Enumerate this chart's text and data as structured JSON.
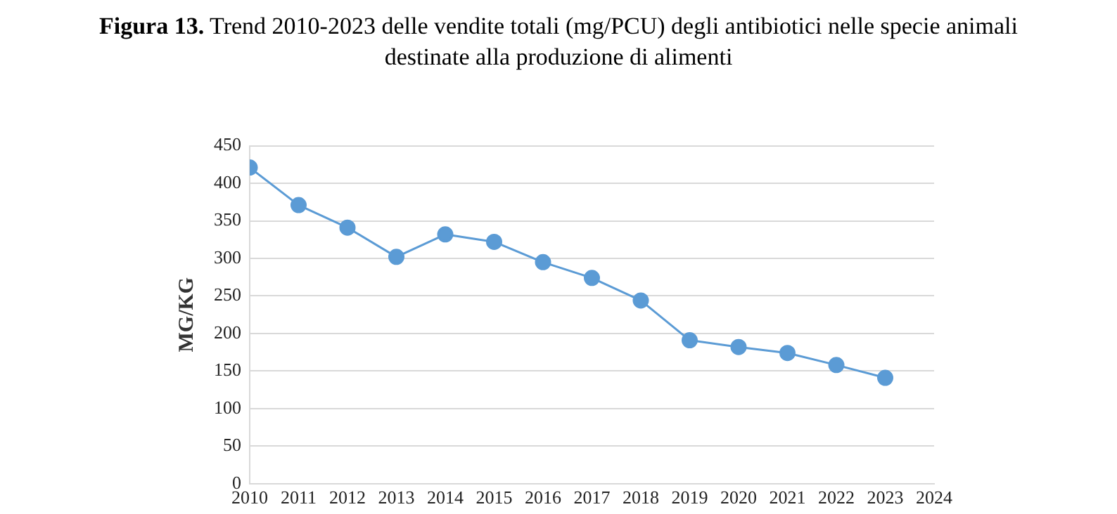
{
  "chart_data": {
    "type": "line",
    "title": "Figura 13. Trend 2010-2023 delle vendite totali (mg/PCU) degli antibiotici nelle specie animali destinate alla produzione di alimenti",
    "ylabel": "MG/KG",
    "x": [
      2010,
      2011,
      2012,
      2013,
      2014,
      2015,
      2016,
      2017,
      2018,
      2019,
      2020,
      2021,
      2022,
      2023
    ],
    "series": [
      {
        "color": "#5b9bd5",
        "values": [
          421,
          371,
          341,
          302,
          332,
          322,
          295,
          274,
          244,
          191,
          182,
          174,
          158,
          141
        ]
      }
    ],
    "xlim": [
      2010,
      2024
    ],
    "xticks": [
      2010,
      2011,
      2012,
      2013,
      2014,
      2015,
      2016,
      2017,
      2018,
      2019,
      2020,
      2021,
      2022,
      2023,
      2024
    ],
    "ylim": [
      0,
      450
    ],
    "yticks": [
      0,
      50,
      100,
      150,
      200,
      250,
      300,
      350,
      400,
      450
    ],
    "grid": "y",
    "legend": false,
    "marker": "circle",
    "line_style": "solid"
  }
}
